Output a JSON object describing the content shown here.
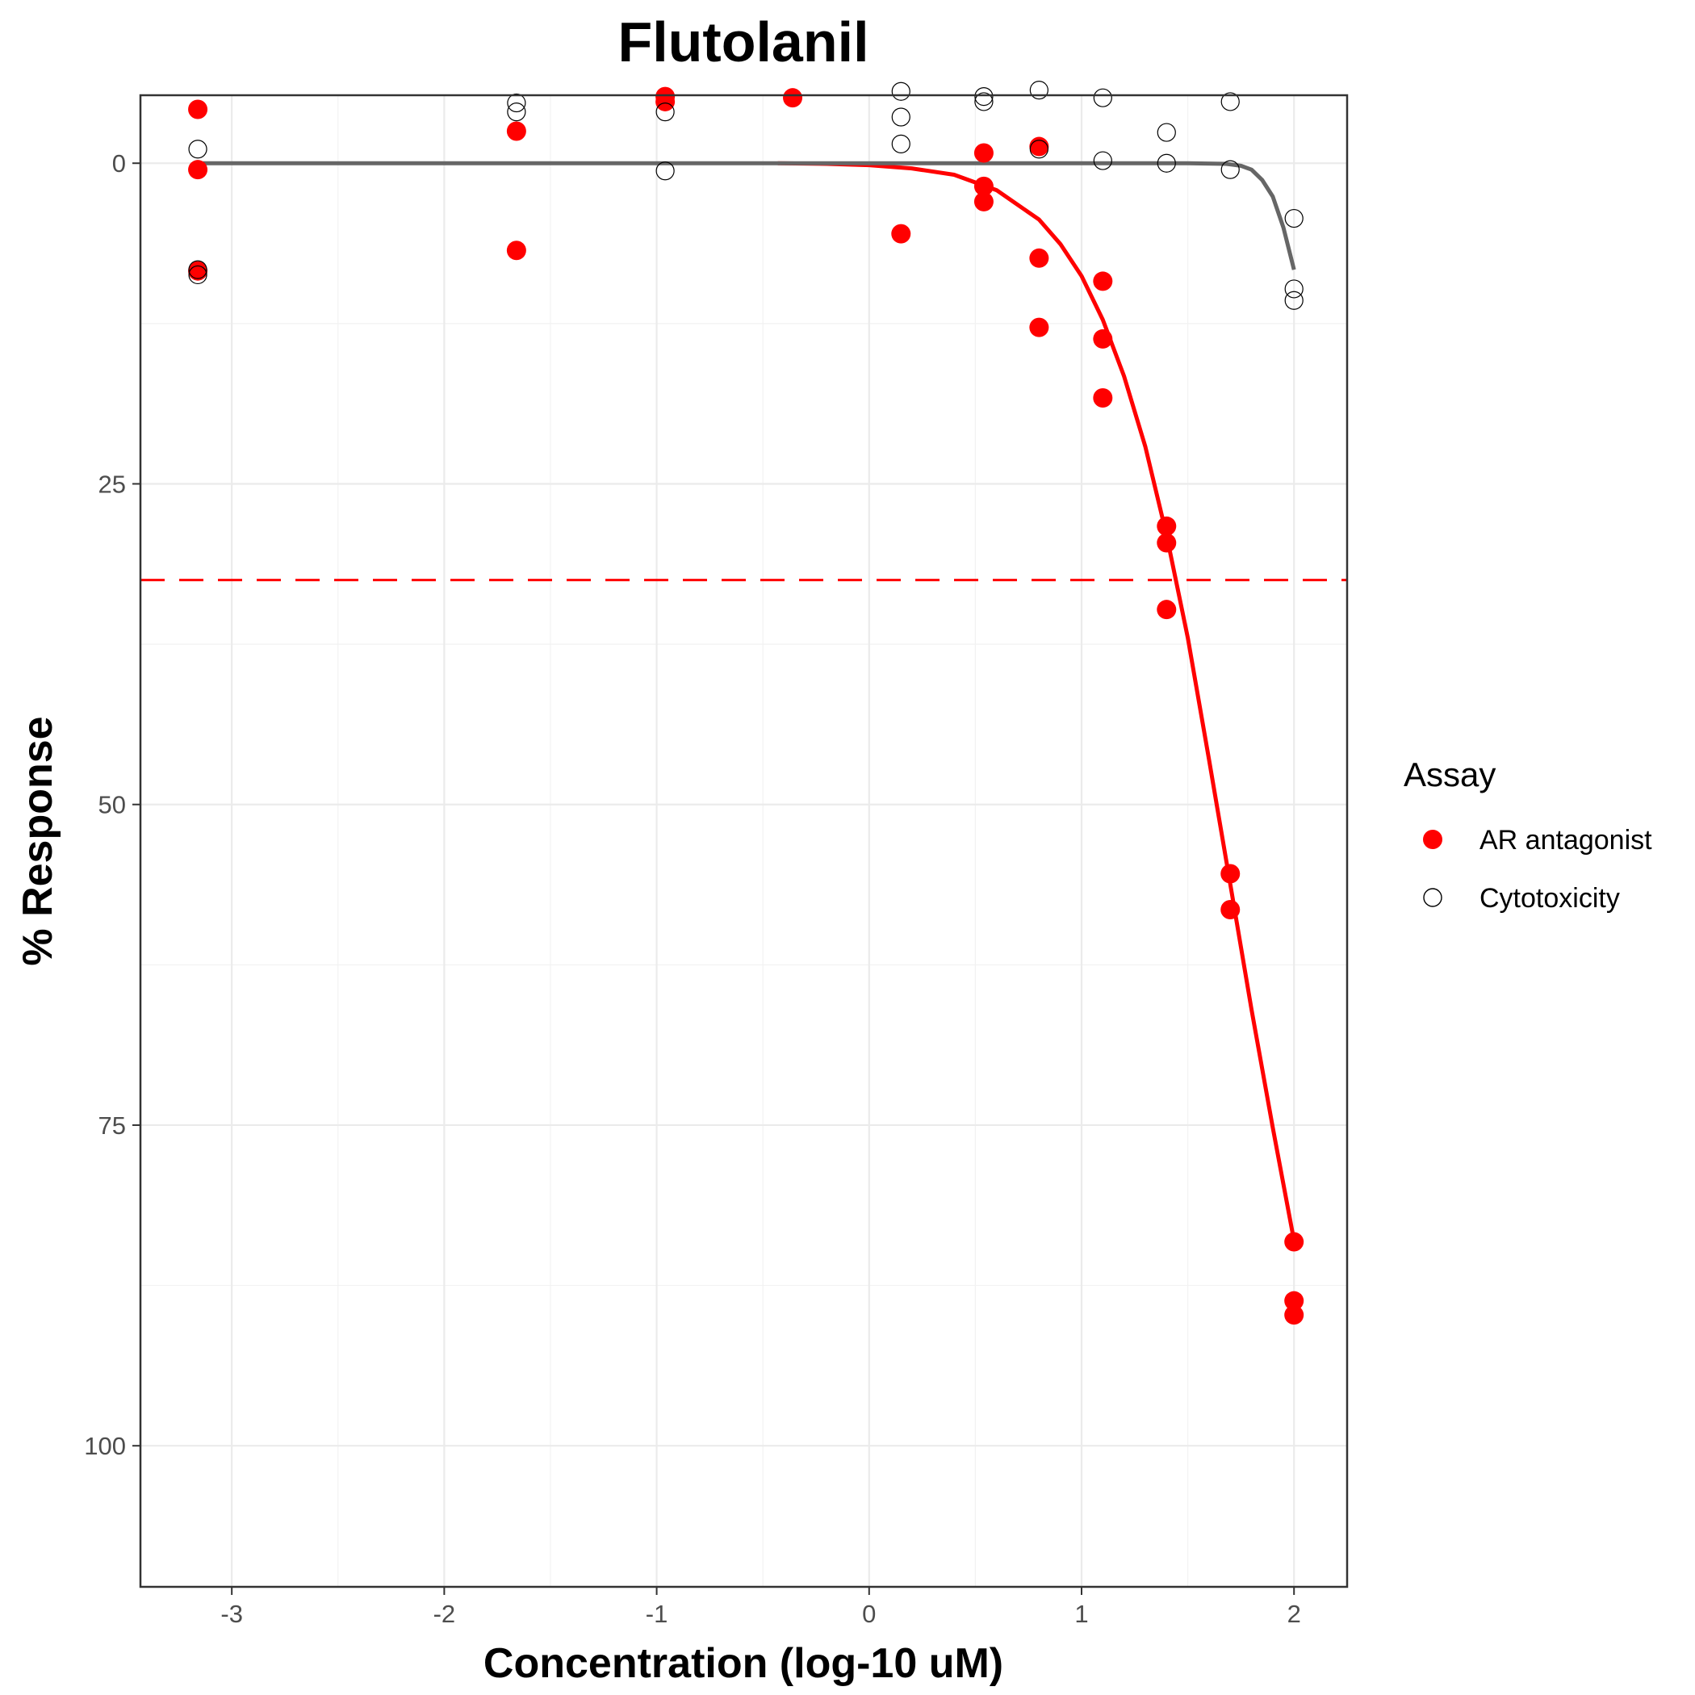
{
  "chart_data": {
    "type": "scatter",
    "title": "Flutolanil",
    "xlabel": "Concentration (log-10 uM)",
    "ylabel": "% Response",
    "xlim": [
      -3.43,
      2.25
    ],
    "ylim": [
      111,
      -5.3
    ],
    "y_reversed": true,
    "x_ticks": [
      -3,
      -2,
      -1,
      0,
      1,
      2
    ],
    "x_tick_labels": [
      "-3",
      "-2",
      "-1",
      "0",
      "1",
      "2"
    ],
    "y_ticks": [
      0,
      25,
      50,
      75,
      100
    ],
    "y_tick_labels": [
      "0",
      "25",
      "50",
      "75",
      "100"
    ],
    "grid": true,
    "legend": {
      "title": "Assay",
      "placement": "right",
      "entries": [
        {
          "label": "AR antagonist",
          "marker": "filled-circle",
          "color": "#ff0000"
        },
        {
          "label": "Cytotoxicity",
          "marker": "open-circle",
          "color": "#000000"
        }
      ]
    },
    "threshold_line": {
      "y": 32.5,
      "color": "#ff0000",
      "style": "dashed"
    },
    "series": [
      {
        "name": "AR antagonist",
        "kind": "points",
        "color": "#ff0000",
        "points": [
          [
            -3.16,
            -4.2
          ],
          [
            -3.16,
            0.5
          ],
          [
            -3.16,
            8.4
          ],
          [
            -1.66,
            -2.5
          ],
          [
            -1.66,
            6.8
          ],
          [
            -0.96,
            -5.2
          ],
          [
            -0.96,
            -4.8
          ],
          [
            -0.36,
            -5.1
          ],
          [
            0.15,
            5.5
          ],
          [
            0.54,
            -0.8
          ],
          [
            0.54,
            1.8
          ],
          [
            0.54,
            3.0
          ],
          [
            0.8,
            -1.3
          ],
          [
            0.8,
            7.4
          ],
          [
            0.8,
            12.8
          ],
          [
            1.1,
            9.2
          ],
          [
            1.1,
            13.7
          ],
          [
            1.1,
            18.3
          ],
          [
            1.4,
            28.3
          ],
          [
            1.4,
            29.6
          ],
          [
            1.4,
            34.8
          ],
          [
            1.7,
            55.4
          ],
          [
            1.7,
            58.2
          ],
          [
            2.0,
            84.1
          ],
          [
            2.0,
            88.7
          ],
          [
            2.0,
            89.8
          ]
        ]
      },
      {
        "name": "Cytotoxicity",
        "kind": "points",
        "color": "#000000",
        "points": [
          [
            -3.16,
            -1.1
          ],
          [
            -3.16,
            8.3
          ],
          [
            -3.16,
            8.7
          ],
          [
            -1.66,
            -4.0
          ],
          [
            -1.66,
            -4.7
          ],
          [
            -0.96,
            -4.0
          ],
          [
            -0.96,
            0.6
          ],
          [
            0.15,
            -5.6
          ],
          [
            0.15,
            -3.6
          ],
          [
            0.15,
            -1.5
          ],
          [
            0.54,
            -4.8
          ],
          [
            0.54,
            -5.2
          ],
          [
            0.8,
            -5.7
          ],
          [
            0.8,
            -1.1
          ],
          [
            1.1,
            -5.1
          ],
          [
            1.1,
            -0.2
          ],
          [
            1.4,
            -2.4
          ],
          [
            1.4,
            0.0
          ],
          [
            1.7,
            -4.8
          ],
          [
            1.7,
            0.5
          ],
          [
            2.0,
            4.3
          ],
          [
            2.0,
            9.8
          ],
          [
            2.0,
            10.7
          ]
        ]
      },
      {
        "name": "AR antagonist",
        "kind": "fit-line",
        "color": "#ff0000",
        "points": [
          [
            -0.43,
            0.0
          ],
          [
            -0.2,
            0.05
          ],
          [
            0.0,
            0.15
          ],
          [
            0.2,
            0.4
          ],
          [
            0.4,
            0.9
          ],
          [
            0.6,
            2.1
          ],
          [
            0.8,
            4.4
          ],
          [
            0.9,
            6.3
          ],
          [
            1.0,
            8.8
          ],
          [
            1.1,
            12.2
          ],
          [
            1.2,
            16.6
          ],
          [
            1.3,
            22.1
          ],
          [
            1.4,
            29.0
          ],
          [
            1.5,
            37.0
          ],
          [
            1.6,
            46.5
          ],
          [
            1.7,
            56.2
          ],
          [
            1.8,
            66.0
          ],
          [
            1.9,
            75.2
          ],
          [
            2.0,
            84.0
          ]
        ]
      },
      {
        "name": "Cytotoxicity",
        "kind": "fit-line",
        "color": "#666666",
        "points": [
          [
            -3.16,
            0.0
          ],
          [
            -2.0,
            0.0
          ],
          [
            -1.0,
            0.0
          ],
          [
            0.0,
            0.0
          ],
          [
            1.0,
            0.0
          ],
          [
            1.5,
            0.0
          ],
          [
            1.68,
            0.05
          ],
          [
            1.75,
            0.2
          ],
          [
            1.8,
            0.5
          ],
          [
            1.85,
            1.3
          ],
          [
            1.9,
            2.6
          ],
          [
            1.95,
            5.0
          ],
          [
            2.0,
            8.3
          ]
        ]
      }
    ]
  }
}
